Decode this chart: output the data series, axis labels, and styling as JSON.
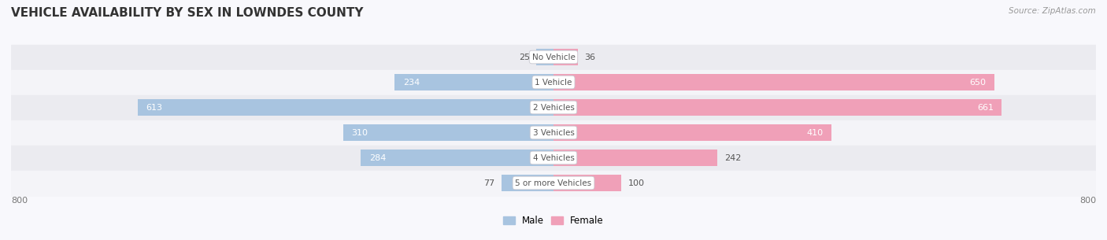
{
  "title": "VEHICLE AVAILABILITY BY SEX IN LOWNDES COUNTY",
  "source": "Source: ZipAtlas.com",
  "categories": [
    "No Vehicle",
    "1 Vehicle",
    "2 Vehicles",
    "3 Vehicles",
    "4 Vehicles",
    "5 or more Vehicles"
  ],
  "male_values": [
    25,
    234,
    613,
    310,
    284,
    77
  ],
  "female_values": [
    36,
    650,
    661,
    410,
    242,
    100
  ],
  "male_color": "#a8c4e0",
  "female_color": "#f0a0b8",
  "row_bg_colors": [
    "#ebebf0",
    "#f4f4f8",
    "#ebebf0",
    "#f4f4f8",
    "#ebebf0",
    "#f4f4f8"
  ],
  "xlim": [
    -800,
    800
  ],
  "legend_male": "Male",
  "legend_female": "Female",
  "title_fontsize": 11,
  "bg_color": "#f8f8fc"
}
